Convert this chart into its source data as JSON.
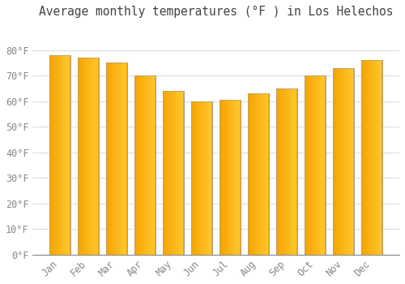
{
  "title": "Average monthly temperatures (°F ) in Los Helechos",
  "months": [
    "Jan",
    "Feb",
    "Mar",
    "Apr",
    "May",
    "Jun",
    "Jul",
    "Aug",
    "Sep",
    "Oct",
    "Nov",
    "Dec"
  ],
  "values": [
    78,
    77,
    75,
    70,
    64,
    60,
    60.5,
    63,
    65,
    70,
    73,
    76
  ],
  "bar_color_left": "#F5A400",
  "bar_color_right": "#FFC830",
  "bar_edge_color": "#999999",
  "ylim": [
    0,
    90
  ],
  "yticks": [
    0,
    10,
    20,
    30,
    40,
    50,
    60,
    70,
    80
  ],
  "ytick_labels": [
    "0°F",
    "10°F",
    "20°F",
    "30°F",
    "40°F",
    "50°F",
    "60°F",
    "70°F",
    "80°F"
  ],
  "background_color": "#FFFFFF",
  "grid_color": "#DDDDDD",
  "title_fontsize": 10.5,
  "tick_fontsize": 8.5,
  "font_family": "monospace",
  "title_color": "#444444",
  "tick_color": "#888888",
  "bar_width": 0.75
}
